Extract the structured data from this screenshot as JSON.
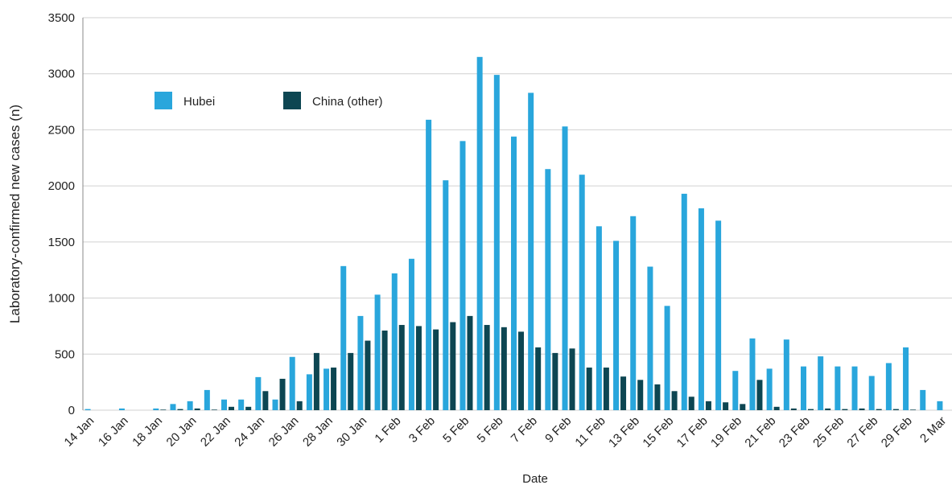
{
  "chart_data": {
    "type": "bar",
    "x_label": "Date",
    "y_label": "Laboratory-confirmed new cases (n)",
    "categories": [
      "14 Jan",
      null,
      "16 Jan",
      null,
      "18 Jan",
      null,
      "20 Jan",
      null,
      "22 Jan",
      null,
      "24 Jan",
      null,
      "26 Jan",
      null,
      "28 Jan",
      null,
      "30 Jan",
      null,
      "1 Feb",
      null,
      "3 Feb",
      null,
      "5 Feb",
      null,
      "5 Feb",
      null,
      "7 Feb",
      null,
      "9 Feb",
      null,
      "11 Feb",
      null,
      "13 Feb",
      null,
      "15 Feb",
      null,
      "17 Feb",
      null,
      "19 Feb",
      null,
      "21 Feb",
      null,
      "23 Feb",
      null,
      "25 Feb",
      null,
      "27 Feb",
      null,
      "29 Feb",
      null,
      "2 Mar"
    ],
    "series": [
      {
        "name": "Hubei",
        "color": "#29a6dc",
        "values": [
          10,
          0,
          15,
          0,
          15,
          55,
          80,
          180,
          95,
          95,
          295,
          95,
          475,
          320,
          370,
          1285,
          840,
          1030,
          1220,
          1350,
          2590,
          2050,
          2400,
          3150,
          2990,
          2440,
          2830,
          2150,
          2530,
          2100,
          1640,
          1510,
          1730,
          1280,
          930,
          1930,
          1800,
          1690,
          350,
          640,
          370,
          630,
          390,
          480,
          390,
          390,
          305,
          420,
          560,
          180,
          80
        ]
      },
      {
        "name": "China (other)",
        "color": "#0d4652",
        "values": [
          0,
          0,
          0,
          0,
          5,
          10,
          15,
          5,
          30,
          30,
          170,
          280,
          80,
          510,
          380,
          510,
          620,
          710,
          760,
          750,
          720,
          785,
          840,
          760,
          740,
          700,
          560,
          510,
          550,
          380,
          380,
          300,
          270,
          230,
          170,
          120,
          80,
          70,
          55,
          270,
          30,
          15,
          10,
          15,
          10,
          15,
          10,
          10,
          5,
          0,
          0
        ]
      }
    ],
    "ylim": [
      0,
      3500
    ],
    "yticks": [
      0,
      500,
      1000,
      1500,
      2000,
      2500,
      3000,
      3500
    ],
    "grid": true,
    "legend": "upper left"
  }
}
